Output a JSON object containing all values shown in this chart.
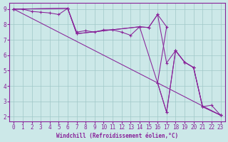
{
  "xlabel": "Windchill (Refroidissement éolien,°C)",
  "background_color": "#cce8e8",
  "line_color": "#882299",
  "grid_color": "#a0c8c8",
  "xlim": [
    -0.5,
    23.5
  ],
  "ylim": [
    1.7,
    9.4
  ],
  "yticks": [
    2,
    3,
    4,
    5,
    6,
    7,
    8,
    9
  ],
  "xticks": [
    0,
    1,
    2,
    3,
    4,
    5,
    6,
    7,
    8,
    9,
    10,
    11,
    12,
    13,
    14,
    15,
    16,
    17,
    18,
    19,
    20,
    21,
    22,
    23
  ],
  "line1_x": [
    0,
    1,
    2,
    3,
    4,
    5,
    6,
    7,
    8,
    9,
    10,
    11,
    12,
    13,
    14,
    15,
    16,
    17,
    16,
    17,
    18,
    19,
    20,
    21,
    22,
    23
  ],
  "line1_y": [
    9.0,
    9.0,
    8.85,
    8.8,
    8.75,
    8.65,
    9.05,
    7.5,
    7.6,
    7.5,
    7.65,
    7.65,
    7.5,
    7.3,
    7.85,
    7.8,
    8.65,
    7.85,
    4.2,
    2.3,
    6.3,
    5.55,
    5.2,
    2.65,
    2.75,
    2.1
  ],
  "line2_x": [
    0,
    6,
    7,
    14,
    15,
    16,
    17,
    18,
    19,
    20,
    21,
    23
  ],
  "line2_y": [
    9.0,
    9.05,
    7.4,
    7.85,
    7.8,
    8.65,
    5.5,
    6.3,
    5.55,
    5.2,
    2.65,
    2.1
  ],
  "line3_x": [
    0,
    23
  ],
  "line3_y": [
    9.0,
    2.1
  ],
  "line4_x": [
    0,
    6,
    7,
    14,
    16,
    17,
    18,
    19,
    20,
    21,
    23
  ],
  "line4_y": [
    9.0,
    9.05,
    7.4,
    7.85,
    4.2,
    2.3,
    6.3,
    5.55,
    5.2,
    2.65,
    2.1
  ]
}
